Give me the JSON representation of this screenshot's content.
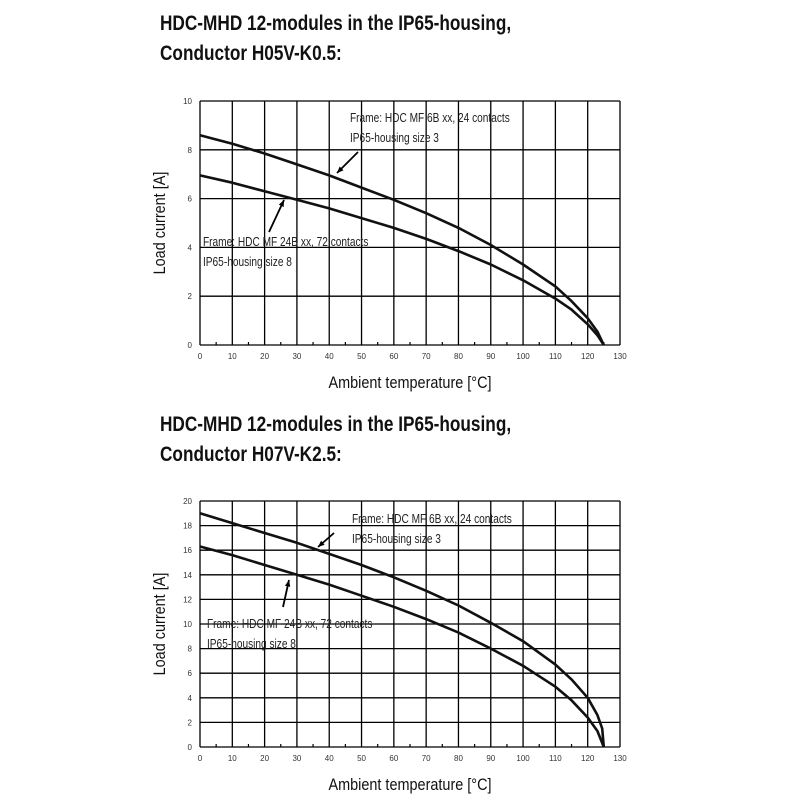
{
  "chart_data": [
    {
      "type": "line",
      "title_line1": "HDC-MHD 12-modules in the IP65-housing,",
      "title_line2": "Conductor H05V-K0.5:",
      "xlabel": "Ambient temperature [°C]",
      "ylabel": "Load current [A]",
      "xlim": [
        0,
        130
      ],
      "ylim": [
        0,
        10
      ],
      "xticks": [
        0,
        10,
        20,
        30,
        40,
        50,
        60,
        70,
        80,
        90,
        100,
        110,
        120,
        130
      ],
      "yticks": [
        0,
        2,
        4,
        6,
        8,
        10
      ],
      "grid": true,
      "series": [
        {
          "name": "upper",
          "label1": "Frame: HDC MF 6B xx, 24 contacts",
          "label2": "IP65-housing size 3",
          "x": [
            0,
            10,
            20,
            30,
            40,
            50,
            60,
            70,
            80,
            90,
            100,
            110,
            115,
            120,
            123,
            125
          ],
          "y": [
            8.6,
            8.25,
            7.85,
            7.4,
            6.95,
            6.45,
            5.95,
            5.4,
            4.8,
            4.1,
            3.3,
            2.4,
            1.8,
            1.1,
            0.55,
            0
          ]
        },
        {
          "name": "lower",
          "label1": "Frame: HDC MF 24B xx, 72 contacts",
          "label2": "IP65-housing size 8",
          "x": [
            0,
            10,
            20,
            30,
            40,
            50,
            60,
            70,
            80,
            90,
            100,
            110,
            115,
            120,
            123,
            125
          ],
          "y": [
            6.95,
            6.65,
            6.3,
            5.95,
            5.6,
            5.2,
            4.8,
            4.35,
            3.85,
            3.3,
            2.65,
            1.9,
            1.45,
            0.85,
            0.4,
            0
          ]
        }
      ]
    },
    {
      "type": "line",
      "title_line1": "HDC-MHD 12-modules in the IP65-housing,",
      "title_line2": "Conductor H07V-K2.5:",
      "xlabel": "Ambient temperature [°C]",
      "ylabel": "Load current [A]",
      "xlim": [
        0,
        130
      ],
      "ylim": [
        0,
        20
      ],
      "xticks": [
        0,
        10,
        20,
        30,
        40,
        50,
        60,
        70,
        80,
        90,
        100,
        110,
        120,
        130
      ],
      "yticks": [
        0,
        2,
        4,
        6,
        8,
        10,
        12,
        14,
        16,
        18,
        20
      ],
      "grid": true,
      "series": [
        {
          "name": "upper",
          "label1": "Frame: HDC MF 6B xx, 24 contacts",
          "label2": "IP65-housing size 3",
          "x": [
            0,
            10,
            20,
            30,
            40,
            50,
            60,
            70,
            80,
            90,
            100,
            110,
            115,
            120,
            123,
            124.5,
            125
          ],
          "y": [
            19,
            18.2,
            17.4,
            16.6,
            15.7,
            14.8,
            13.8,
            12.7,
            11.5,
            10.1,
            8.6,
            6.7,
            5.5,
            4.0,
            2.6,
            1.5,
            0
          ]
        },
        {
          "name": "lower",
          "label1": "Frame: HDC MF 24B xx, 72 contacts",
          "label2": "IP65-housing size 8",
          "x": [
            0,
            10,
            20,
            30,
            40,
            50,
            60,
            70,
            80,
            90,
            100,
            110,
            115,
            120,
            123,
            125
          ],
          "y": [
            16.3,
            15.6,
            14.8,
            14.0,
            13.2,
            12.3,
            11.4,
            10.4,
            9.3,
            8.0,
            6.6,
            4.9,
            3.8,
            2.4,
            1.3,
            0
          ]
        }
      ]
    }
  ]
}
